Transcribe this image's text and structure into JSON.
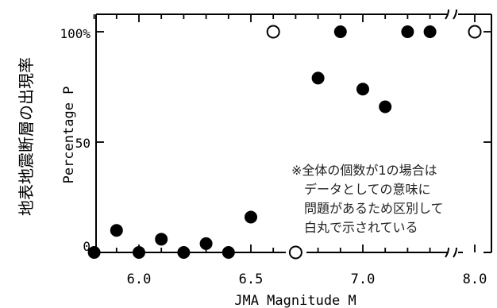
{
  "chart_data": {
    "type": "scatter",
    "ylabel_ja": "地表地震断層の出現率",
    "ylabel": "Percentage P",
    "xlabel": "JMA Magnitude M",
    "x_ticks": [
      "6.0",
      "6.5",
      "7.0",
      "8.0"
    ],
    "y_ticks": [
      "0",
      "50",
      "100%"
    ],
    "ylim": [
      0,
      100
    ],
    "x_break": "between 7.4 and 8.0",
    "note": [
      "※全体の個数が1の場合は",
      "データとしての意味に",
      "問題があるため区別して",
      "白丸で示されている"
    ],
    "series": [
      {
        "marker": "filled circle",
        "points": [
          {
            "x": 5.8,
            "y": 0
          },
          {
            "x": 5.9,
            "y": 10
          },
          {
            "x": 6.0,
            "y": 0
          },
          {
            "x": 6.1,
            "y": 6
          },
          {
            "x": 6.2,
            "y": 0
          },
          {
            "x": 6.3,
            "y": 4
          },
          {
            "x": 6.4,
            "y": 0
          },
          {
            "x": 6.5,
            "y": 16
          },
          {
            "x": 6.8,
            "y": 79
          },
          {
            "x": 6.9,
            "y": 100
          },
          {
            "x": 7.0,
            "y": 74
          },
          {
            "x": 7.1,
            "y": 66
          },
          {
            "x": 7.2,
            "y": 100
          },
          {
            "x": 7.3,
            "y": 100
          }
        ]
      },
      {
        "marker": "open circle",
        "points": [
          {
            "x": 6.6,
            "y": 100
          },
          {
            "x": 6.7,
            "y": 0
          },
          {
            "x": 8.0,
            "y": 100
          }
        ]
      }
    ]
  }
}
